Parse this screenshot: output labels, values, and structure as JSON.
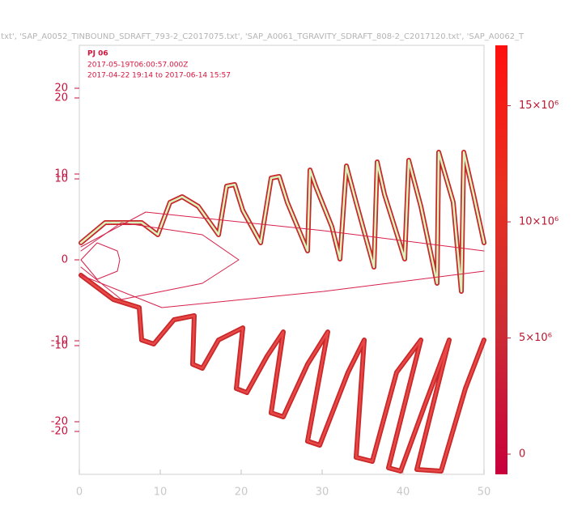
{
  "chart_data": {
    "type": "line",
    "title": ".txt', 'SAP_A0052_TINBOUND_SDRAFT_793-2_C2017075.txt', 'SAP_A0061_TGRAVITY_SDRAFT_808-2_C2017120.txt', 'SAP_A0062_T",
    "annotations": [
      "PJ 06",
      "2017-05-19T06:00:57.000Z",
      "2017-04-22 19:14 to 2017-06-14 15:57"
    ],
    "xlim": [
      0,
      50
    ],
    "xticks": [
      0,
      10,
      20,
      30,
      40,
      50
    ],
    "ylim": [
      -26.5,
      26.5
    ],
    "yticks": [
      20,
      10,
      0,
      -10,
      -20
    ],
    "y2lim": [
      -25,
      25
    ],
    "y2ticks": [
      20,
      10,
      -10,
      -20
    ],
    "colorbar": {
      "lim": [
        -870000,
        17600000
      ],
      "ticks": [
        {
          "value": 0,
          "label": "0"
        },
        {
          "value": 5000000,
          "label": "5×10⁶"
        },
        {
          "value": 10000000,
          "label": "10×10⁶"
        },
        {
          "value": 15000000,
          "label": "15×10⁶"
        }
      ],
      "colors": [
        "#c8003c",
        "#cc2c34",
        "#e83020",
        "#ff1010"
      ]
    },
    "series": [
      {
        "color": "#c82828",
        "core_color": "#d8f5c0",
        "x": [
          0.2,
          3.2,
          7.7,
          9.7,
          11.2,
          12.7,
          14.7,
          17.2,
          18.2,
          19.2,
          20.2,
          22.4,
          23.7,
          24.7,
          25.7,
          28.2,
          28.5,
          29.2,
          31.2,
          32.2,
          33,
          34.2,
          36.4,
          36.8,
          37.7,
          40.2,
          40.7,
          42.2,
          44.2,
          44.4,
          46.2,
          47.2,
          47.5,
          48.7,
          50
        ],
        "values": [
          2.1,
          4.6,
          4.6,
          3.1,
          7.1,
          7.8,
          6.6,
          3.1,
          9.1,
          9.3,
          6.1,
          2.1,
          10.1,
          10.3,
          7.1,
          1.1,
          11.1,
          9.1,
          4.1,
          0.1,
          11.6,
          7.1,
          -0.9,
          12.1,
          8.1,
          0.1,
          12.3,
          6.6,
          -2.9,
          13.3,
          7.1,
          -3.9,
          13.3,
          8.1,
          2.1
        ]
      },
      {
        "color": "#c82828",
        "core_color": "#e84848",
        "x": [
          0.2,
          4.2,
          7.4,
          7.7,
          9.2,
          11.7,
          14.2,
          14,
          15.2,
          17.2,
          20.2,
          19.4,
          20.7,
          23.2,
          25.2,
          23.7,
          25.2,
          28.2,
          30.7,
          28.2,
          29.7,
          33.2,
          35.2,
          34.2,
          36.2,
          39.2,
          42.2,
          38.2,
          39.7,
          42.7,
          45.7,
          41.7,
          44.7,
          47.7,
          50
        ],
        "values": [
          -1.9,
          -4.9,
          -5.9,
          -9.9,
          -10.4,
          -7.4,
          -6.9,
          -12.9,
          -13.4,
          -9.9,
          -8.4,
          -15.9,
          -16.4,
          -11.9,
          -8.9,
          -18.9,
          -19.4,
          -12.9,
          -8.9,
          -22.4,
          -22.9,
          -13.9,
          -9.9,
          -24.4,
          -24.9,
          -13.9,
          -9.9,
          -25.7,
          -26.1,
          -17.9,
          -9.9,
          -25.9,
          -26.1,
          -15.9,
          -9.9
        ]
      },
      {
        "color": "#d8204a",
        "x": [
          0.2,
          2.2,
          4.7,
          5,
          4.7,
          2.2,
          0.2
        ],
        "values": [
          0,
          2.1,
          1.1,
          0,
          -1.4,
          -2.4,
          0
        ]
      },
      {
        "color": "#d8204a",
        "x": [
          0.2,
          5.2,
          15.2,
          19.7,
          15.2,
          5.2,
          0.2
        ],
        "values": [
          1.1,
          4.6,
          3.1,
          0,
          -2.9,
          -4.9,
          -0.9
        ]
      },
      {
        "color": "#d8204a",
        "x": [
          0.2,
          8.2,
          30.2,
          50
        ],
        "values": [
          1.6,
          5.9,
          3.6,
          1.1
        ]
      },
      {
        "color": "#d8204a",
        "x": [
          0.2,
          10.2,
          30.2,
          50
        ],
        "values": [
          -1.9,
          -5.9,
          -3.9,
          -1.4
        ]
      }
    ]
  }
}
